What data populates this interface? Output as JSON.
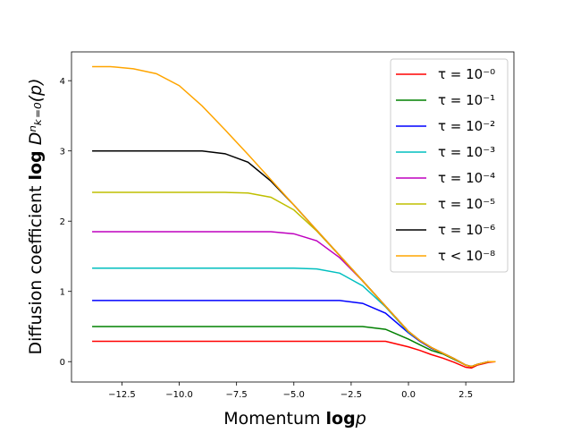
{
  "chart_data": {
    "type": "line",
    "x_label": [
      "Momentum ",
      "log",
      "p"
    ],
    "y_label": [
      "Diffusion coefficient ",
      "log",
      " Dⁿₖ₌₀(p)"
    ],
    "x": [
      -13.8,
      -13,
      -12,
      -11,
      -10,
      -9,
      -8,
      -7,
      -6,
      -5,
      -4,
      -3,
      -2,
      -1,
      0,
      0.5,
      1,
      1.5,
      2,
      2.5,
      2.75,
      3,
      3.25,
      3.5,
      3.8
    ],
    "series": [
      {
        "name": "τ = 10⁻⁰",
        "color": "#ff0000",
        "values": [
          0.29,
          0.29,
          0.29,
          0.29,
          0.29,
          0.29,
          0.29,
          0.29,
          0.29,
          0.29,
          0.29,
          0.29,
          0.29,
          0.29,
          0.21,
          0.16,
          0.1,
          0.05,
          -0.01,
          -0.08,
          -0.09,
          -0.05,
          -0.03,
          -0.01,
          0
        ]
      },
      {
        "name": "τ = 10⁻¹",
        "color": "#008000",
        "values": [
          0.5,
          0.5,
          0.5,
          0.5,
          0.5,
          0.5,
          0.5,
          0.5,
          0.5,
          0.5,
          0.5,
          0.5,
          0.5,
          0.46,
          0.32,
          0.24,
          0.16,
          0.11,
          0.03,
          -0.05,
          -0.07,
          -0.04,
          -0.02,
          0,
          0
        ]
      },
      {
        "name": "τ = 10⁻²",
        "color": "#0000ff",
        "values": [
          0.87,
          0.87,
          0.87,
          0.87,
          0.87,
          0.87,
          0.87,
          0.87,
          0.87,
          0.87,
          0.87,
          0.87,
          0.83,
          0.69,
          0.41,
          0.29,
          0.19,
          0.12,
          0.04,
          -0.05,
          -0.07,
          -0.04,
          -0.02,
          0,
          0
        ]
      },
      {
        "name": "τ = 10⁻³",
        "color": "#00bfbf",
        "values": [
          1.33,
          1.33,
          1.33,
          1.33,
          1.33,
          1.33,
          1.33,
          1.33,
          1.33,
          1.33,
          1.32,
          1.26,
          1.08,
          0.78,
          0.42,
          0.3,
          0.2,
          0.12,
          0.04,
          -0.05,
          -0.07,
          -0.04,
          -0.02,
          0,
          0
        ]
      },
      {
        "name": "τ = 10⁻⁴",
        "color": "#bf00bf",
        "values": [
          1.85,
          1.85,
          1.85,
          1.85,
          1.85,
          1.85,
          1.85,
          1.85,
          1.85,
          1.82,
          1.72,
          1.48,
          1.15,
          0.79,
          0.43,
          0.3,
          0.2,
          0.12,
          0.04,
          -0.05,
          -0.07,
          -0.04,
          -0.02,
          0,
          0
        ]
      },
      {
        "name": "τ = 10⁻⁵",
        "color": "#bfbf00",
        "values": [
          2.41,
          2.41,
          2.41,
          2.41,
          2.41,
          2.41,
          2.41,
          2.4,
          2.34,
          2.16,
          1.86,
          1.51,
          1.15,
          0.79,
          0.43,
          0.3,
          0.2,
          0.12,
          0.04,
          -0.05,
          -0.07,
          -0.04,
          -0.02,
          0,
          0
        ]
      },
      {
        "name": "τ = 10⁻⁶",
        "color": "#000000",
        "values": [
          3,
          3,
          3,
          3,
          3,
          3,
          2.96,
          2.84,
          2.57,
          2.23,
          1.87,
          1.51,
          1.15,
          0.79,
          0.43,
          0.3,
          0.2,
          0.12,
          0.04,
          -0.05,
          -0.07,
          -0.04,
          -0.02,
          0,
          0
        ]
      },
      {
        "name": "τ < 10⁻⁸",
        "color": "#ffa500",
        "values": [
          4.2,
          4.2,
          4.17,
          4.1,
          3.93,
          3.64,
          3.3,
          2.95,
          2.59,
          2.23,
          1.87,
          1.51,
          1.15,
          0.79,
          0.43,
          0.3,
          0.2,
          0.12,
          0.04,
          -0.05,
          -0.07,
          -0.04,
          -0.02,
          0,
          0
        ]
      }
    ],
    "xlim": [
      -14.7,
      4.6
    ],
    "ylim": [
      -0.29,
      4.41
    ],
    "xticks": [
      {
        "value": -12.5,
        "label": "−12.5"
      },
      {
        "value": -10,
        "label": "−10.0"
      },
      {
        "value": -7.5,
        "label": "−7.5"
      },
      {
        "value": -5,
        "label": "−5.0"
      },
      {
        "value": -2.5,
        "label": "−2.5"
      },
      {
        "value": 0,
        "label": "0.0"
      },
      {
        "value": 2.5,
        "label": "2.5"
      }
    ],
    "yticks": [
      0,
      1,
      2,
      3,
      4
    ],
    "legend": "upper right",
    "grid": false
  }
}
